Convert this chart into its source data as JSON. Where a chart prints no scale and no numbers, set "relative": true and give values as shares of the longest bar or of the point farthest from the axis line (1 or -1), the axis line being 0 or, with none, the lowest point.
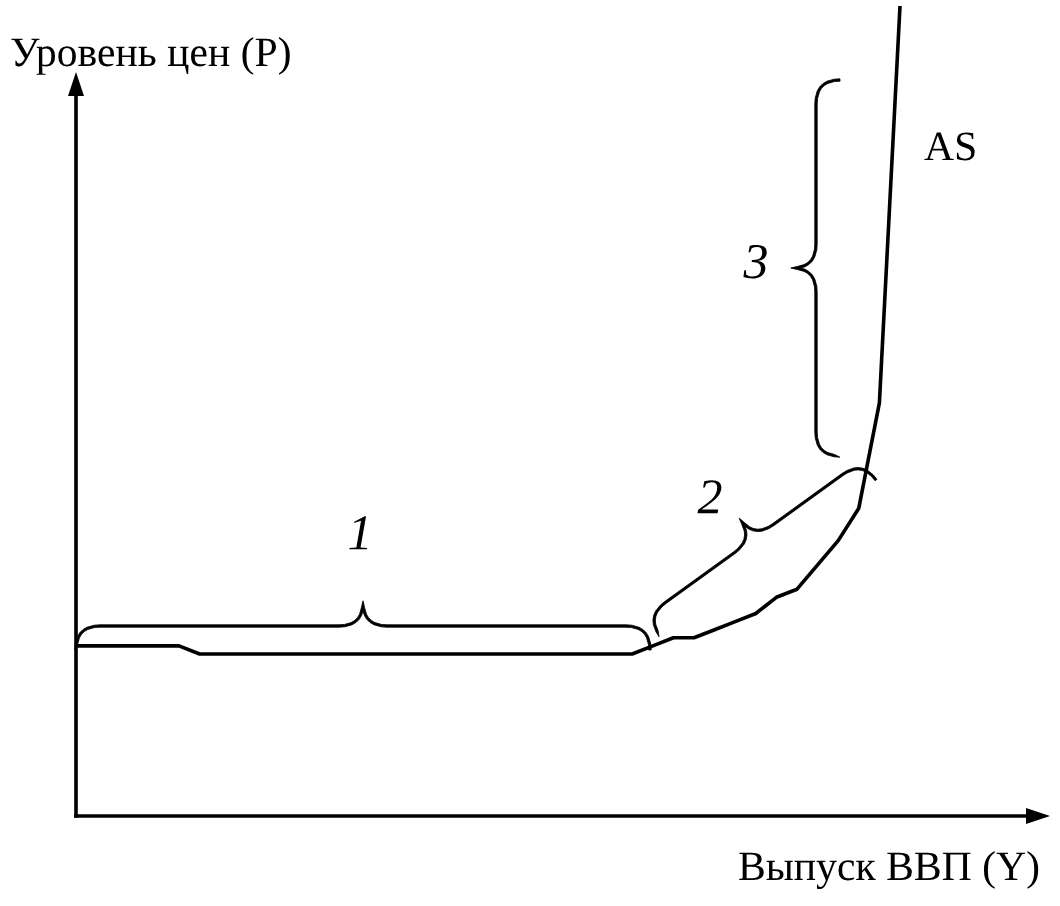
{
  "chart_data": {
    "type": "line",
    "relative": true,
    "xlabel": "Выпуск ВВП (Y)",
    "ylabel": "Уровень цен (P)",
    "categories": [
      null,
      null,
      null,
      null,
      null,
      null,
      null,
      null,
      null,
      null,
      null,
      null,
      null,
      null,
      null,
      null,
      null,
      null,
      null,
      null,
      null,
      null,
      null,
      null,
      null,
      null,
      null,
      null,
      null,
      null,
      null,
      null,
      null,
      null,
      null,
      null,
      null,
      null,
      null,
      null,
      null
    ],
    "series": [
      {
        "name": "AS",
        "color": "#000000",
        "values": [
          0.21,
          0.21,
          0.21,
          0.21,
          0.21,
          0.21,
          0.2,
          0.2,
          0.2,
          0.2,
          0.2,
          0.2,
          0.2,
          0.2,
          0.2,
          0.2,
          0.2,
          0.2,
          0.2,
          0.2,
          0.2,
          0.2,
          0.2,
          0.2,
          0.2,
          0.2,
          0.2,
          0.2,
          0.21,
          0.22,
          0.22,
          0.23,
          0.24,
          0.25,
          0.27,
          0.28,
          0.31,
          0.34,
          0.38,
          0.51,
          1.0
        ]
      }
    ],
    "annotations": [
      "1",
      "2",
      "3"
    ],
    "marker": "none",
    "line_style": "solid",
    "legend": false
  }
}
